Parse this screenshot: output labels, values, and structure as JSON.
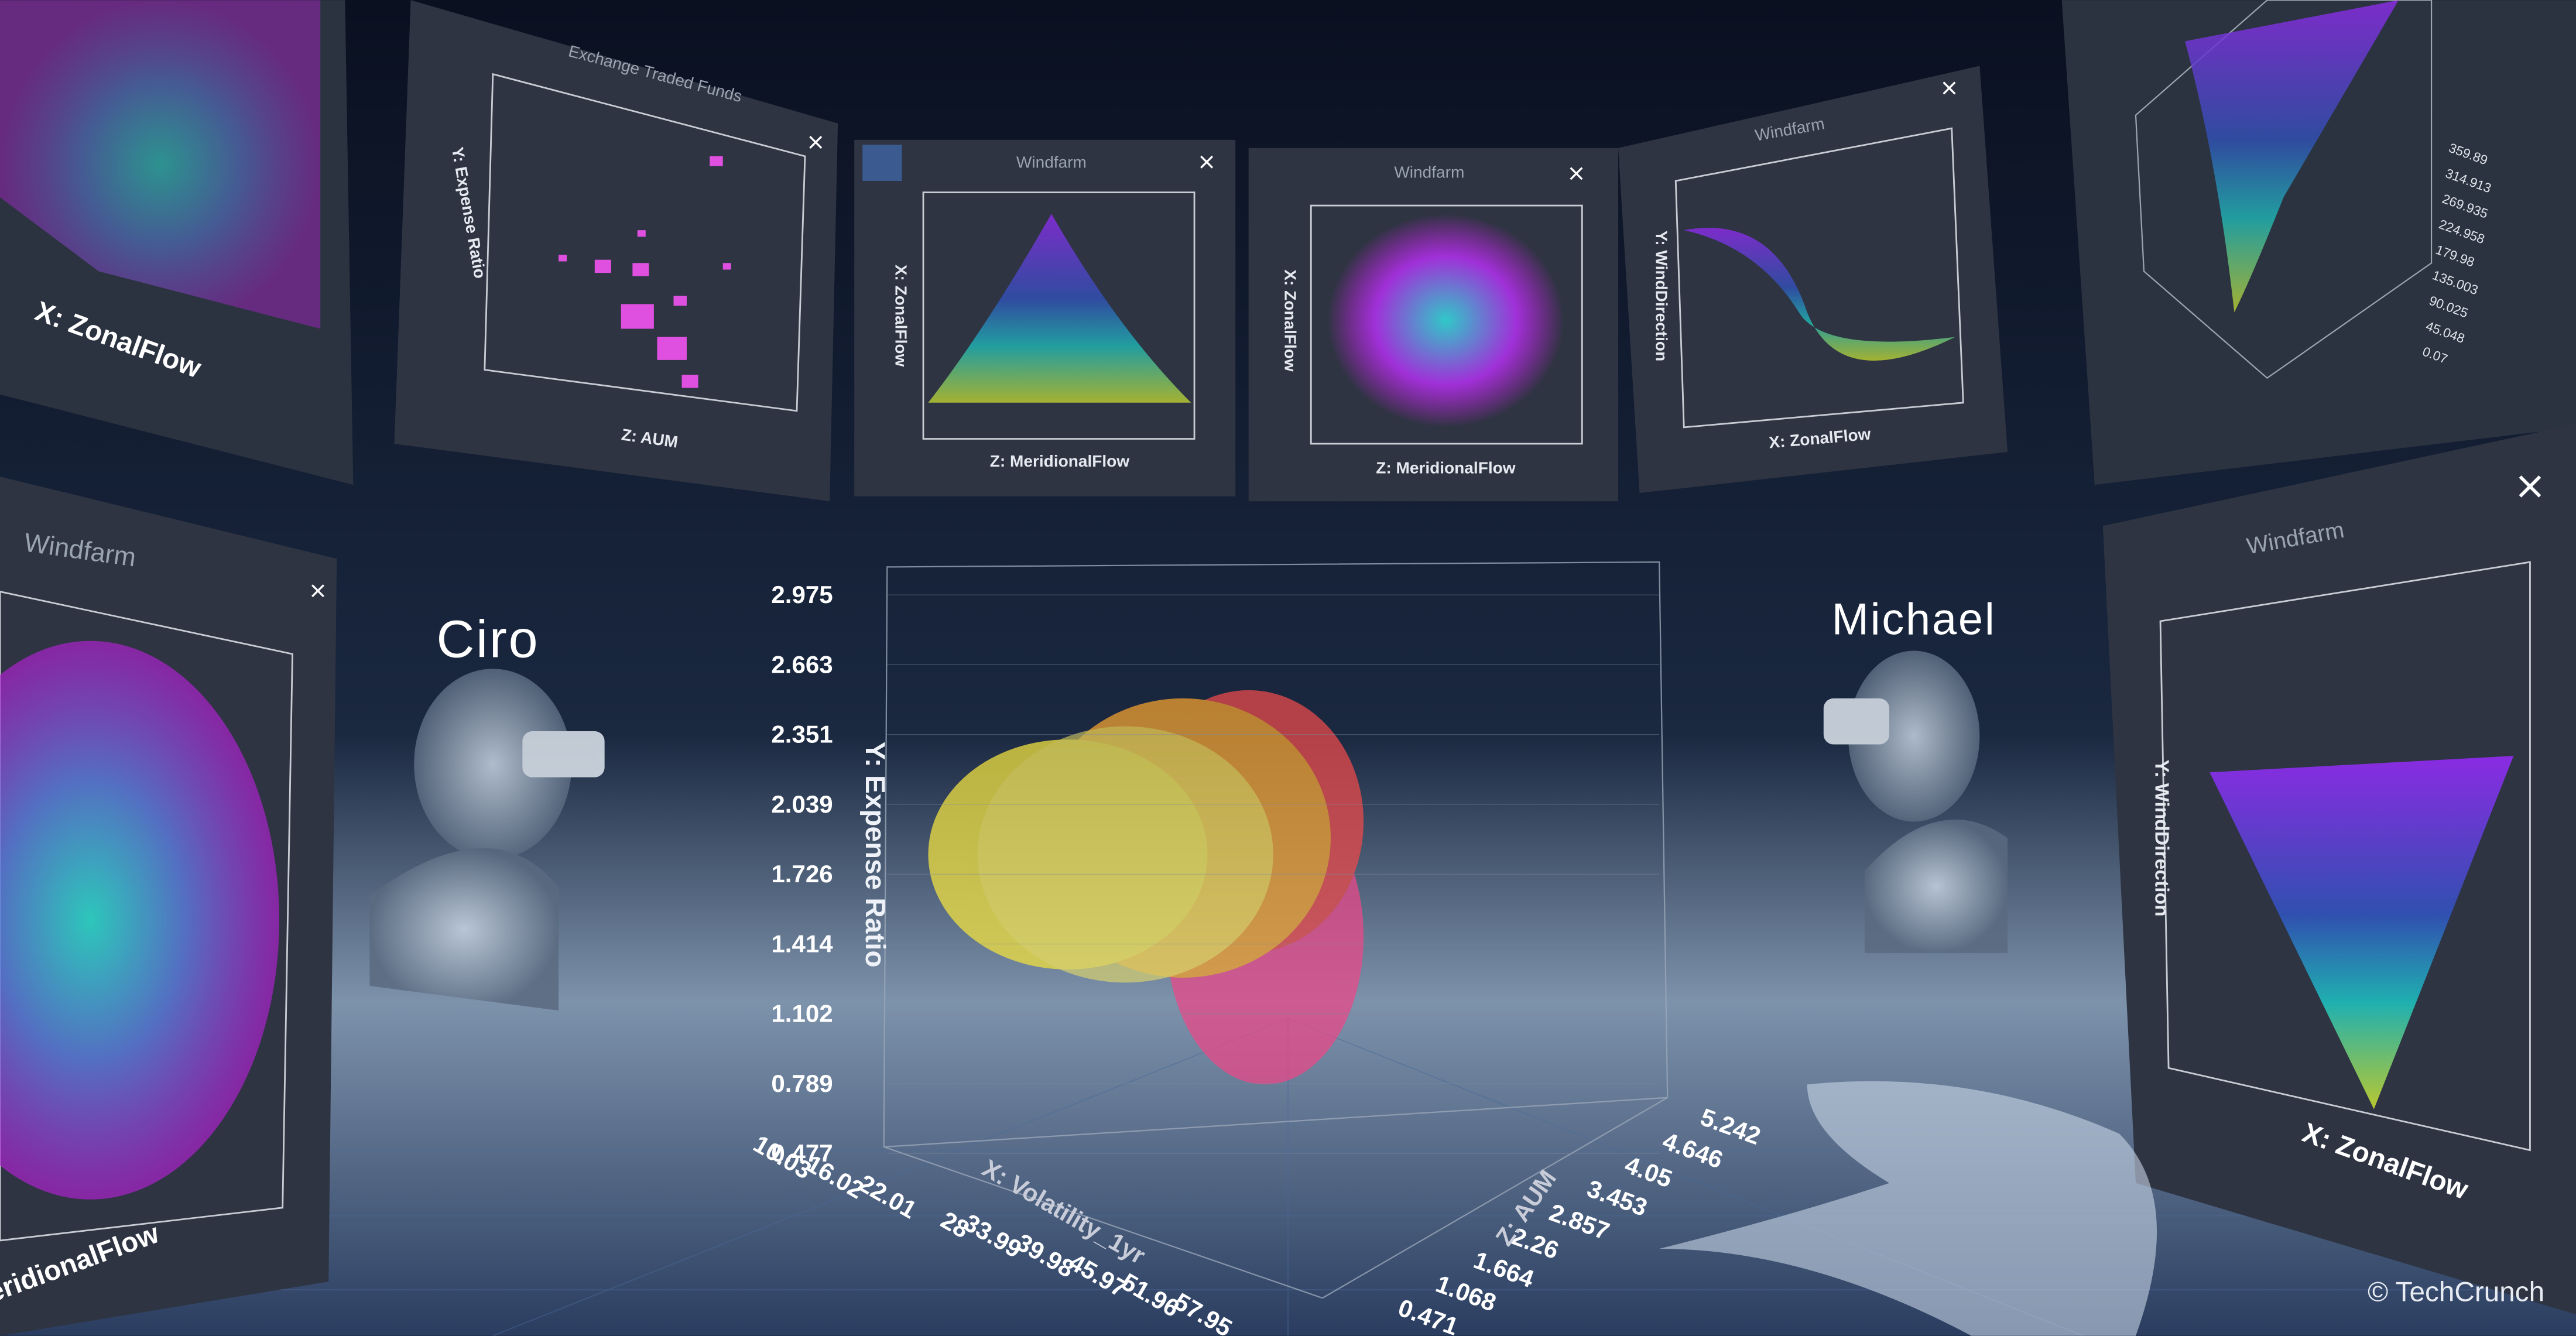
{
  "panels": [
    {
      "axis_x": "X: ZonalFlow"
    },
    {
      "title": "Exchange Traded Funds",
      "axis_y": "Y: Expense Ratio",
      "axis_z": "Z: AUM"
    },
    {
      "title": "Windfarm",
      "axis_x": "X: ZonalFlow",
      "axis_z": "Z: MeridionalFlow"
    },
    {
      "title": "Windfarm",
      "axis_x": "X: ZonalFlow",
      "axis_z": "Z: MeridionalFlow"
    },
    {
      "title": "Windfarm",
      "axis_y": "Y: WindDirection",
      "axis_x": "X: ZonalFlow"
    },
    {
      "ticks": [
        359.89,
        314.913,
        269.935,
        224.958,
        179.98,
        135.003,
        90.025,
        45.048,
        0.07
      ]
    },
    {
      "title": "Windfarm",
      "axis_z": "Z: MeridionalFlow"
    },
    {
      "title": "Windfarm",
      "axis_y": "Y: WindDirection",
      "axis_x": "X: ZonalFlow"
    }
  ],
  "users": [
    "Ciro",
    "Michael"
  ],
  "main_chart": {
    "y_label": "Y: Expense Ratio",
    "yticks": [
      2.975,
      2.663,
      2.351,
      2.039,
      1.726,
      1.414,
      1.102,
      0.789,
      0.477
    ],
    "x_label": "X: Volatility_1yr",
    "xticks": [
      10.03,
      16.02,
      22.01,
      28,
      33.99,
      39.98,
      45.97,
      51.96,
      57.95
    ],
    "z_label": "Z: AUM",
    "zticks": [
      0.471,
      1.068,
      1.664,
      2.26,
      2.857,
      3.453,
      4.05,
      4.646,
      5.242
    ]
  },
  "watermark": "© TechCrunch"
}
